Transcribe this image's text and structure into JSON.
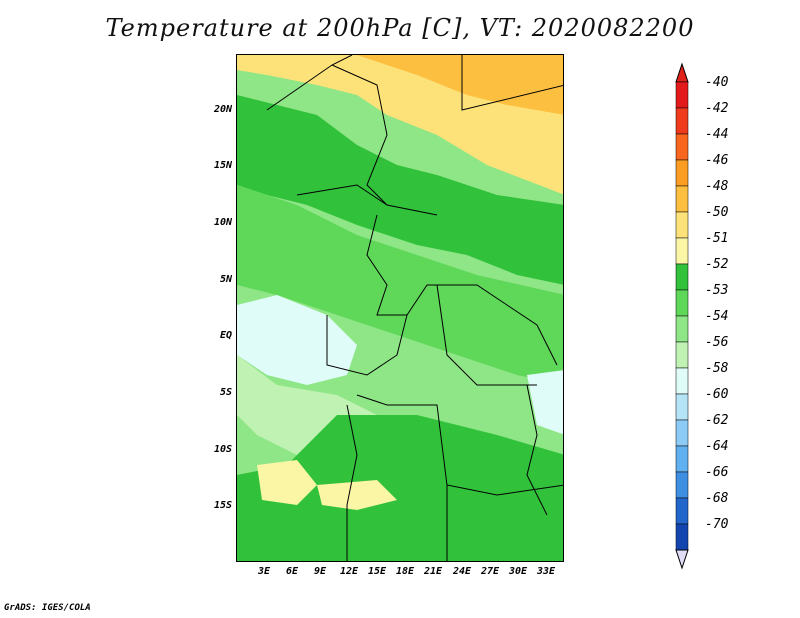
{
  "title": "Temperature at 200hPa [C], VT: 2020082200",
  "credit": "GrADS: IGES/COLA",
  "map": {
    "lat_labels": [
      "20N",
      "15N",
      "10N",
      "5N",
      "EQ",
      "5S",
      "10S",
      "15S"
    ],
    "lon_labels": [
      "3E",
      "6E",
      "9E",
      "12E",
      "15E",
      "18E",
      "21E",
      "24E",
      "27E",
      "30E",
      "33E"
    ]
  },
  "colorbar": {
    "levels": [
      {
        "label": "-40",
        "color": "#e31a1c"
      },
      {
        "label": "-42",
        "color": "#ef3b1c"
      },
      {
        "label": "-44",
        "color": "#f7661c"
      },
      {
        "label": "-46",
        "color": "#fb9d22"
      },
      {
        "label": "-48",
        "color": "#fdbf3f"
      },
      {
        "label": "-50",
        "color": "#fde27a"
      },
      {
        "label": "-51",
        "color": "#fbf5a6"
      },
      {
        "label": "-52",
        "color": "#31c13b"
      },
      {
        "label": "-53",
        "color": "#5fd85a"
      },
      {
        "label": "-54",
        "color": "#8ee686"
      },
      {
        "label": "-56",
        "color": "#bff2b3"
      },
      {
        "label": "-58",
        "color": "#dffcf8"
      },
      {
        "label": "-60",
        "color": "#b5e4f7"
      },
      {
        "label": "-62",
        "color": "#8ccbf6"
      },
      {
        "label": "-64",
        "color": "#61b0ef"
      },
      {
        "label": "-66",
        "color": "#3e8fe2"
      },
      {
        "label": "-68",
        "color": "#2266cc"
      },
      {
        "label": "-70",
        "color": "#1245b0"
      }
    ],
    "extend_min_color": "#0a1f7a",
    "extend_low_color": "#e1ddf7",
    "extend_high_color": "#e2231b"
  }
}
